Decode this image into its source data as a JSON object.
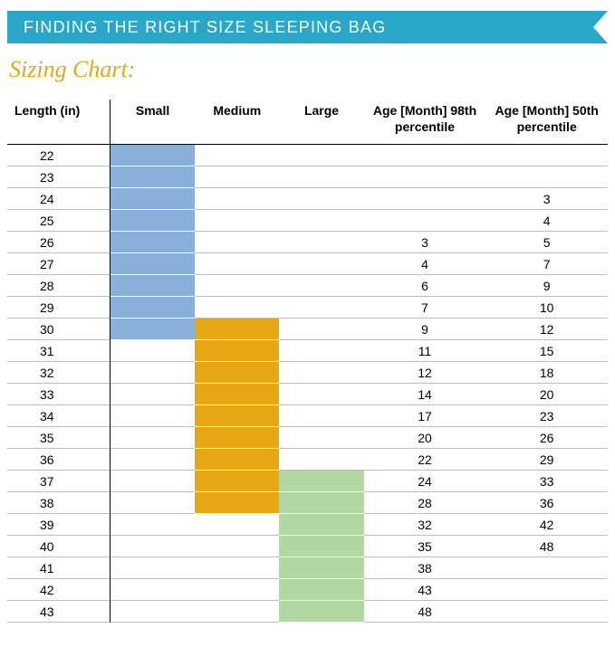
{
  "banner": {
    "text": "FINDING THE RIGHT SIZE SLEEPING BAG",
    "bg_color": "#2aa6c8",
    "text_color": "#ffffff"
  },
  "subtitle": {
    "text": "Sizing Chart:",
    "color": "#e6a817"
  },
  "table": {
    "columns": {
      "length": "Length (in)",
      "small": "Small",
      "medium": "Medium",
      "large": "Large",
      "age98": "Age [Month] 98th percentile",
      "age50": "Age [Month] 50th percentile"
    },
    "size_colors": {
      "small": "#8aafd8",
      "medium": "#e6a817",
      "large": "#b3d7a3"
    },
    "rows": [
      {
        "length": 22,
        "small": true,
        "medium": false,
        "large": false,
        "age98": "",
        "age50": ""
      },
      {
        "length": 23,
        "small": true,
        "medium": false,
        "large": false,
        "age98": "",
        "age50": ""
      },
      {
        "length": 24,
        "small": true,
        "medium": false,
        "large": false,
        "age98": "",
        "age50": "3"
      },
      {
        "length": 25,
        "small": true,
        "medium": false,
        "large": false,
        "age98": "",
        "age50": "4"
      },
      {
        "length": 26,
        "small": true,
        "medium": false,
        "large": false,
        "age98": "3",
        "age50": "5"
      },
      {
        "length": 27,
        "small": true,
        "medium": false,
        "large": false,
        "age98": "4",
        "age50": "7"
      },
      {
        "length": 28,
        "small": true,
        "medium": false,
        "large": false,
        "age98": "6",
        "age50": "9"
      },
      {
        "length": 29,
        "small": true,
        "medium": false,
        "large": false,
        "age98": "7",
        "age50": "10"
      },
      {
        "length": 30,
        "small": true,
        "medium": true,
        "large": false,
        "age98": "9",
        "age50": "12"
      },
      {
        "length": 31,
        "small": false,
        "medium": true,
        "large": false,
        "age98": "11",
        "age50": "15"
      },
      {
        "length": 32,
        "small": false,
        "medium": true,
        "large": false,
        "age98": "12",
        "age50": "18"
      },
      {
        "length": 33,
        "small": false,
        "medium": true,
        "large": false,
        "age98": "14",
        "age50": "20"
      },
      {
        "length": 34,
        "small": false,
        "medium": true,
        "large": false,
        "age98": "17",
        "age50": "23"
      },
      {
        "length": 35,
        "small": false,
        "medium": true,
        "large": false,
        "age98": "20",
        "age50": "26"
      },
      {
        "length": 36,
        "small": false,
        "medium": true,
        "large": false,
        "age98": "22",
        "age50": "29"
      },
      {
        "length": 37,
        "small": false,
        "medium": true,
        "large": true,
        "age98": "24",
        "age50": "33"
      },
      {
        "length": 38,
        "small": false,
        "medium": true,
        "large": true,
        "age98": "28",
        "age50": "36"
      },
      {
        "length": 39,
        "small": false,
        "medium": false,
        "large": true,
        "age98": "32",
        "age50": "42"
      },
      {
        "length": 40,
        "small": false,
        "medium": false,
        "large": true,
        "age98": "35",
        "age50": "48"
      },
      {
        "length": 41,
        "small": false,
        "medium": false,
        "large": true,
        "age98": "38",
        "age50": ""
      },
      {
        "length": 42,
        "small": false,
        "medium": false,
        "large": true,
        "age98": "43",
        "age50": ""
      },
      {
        "length": 43,
        "small": false,
        "medium": false,
        "large": true,
        "age98": "48",
        "age50": ""
      }
    ]
  }
}
